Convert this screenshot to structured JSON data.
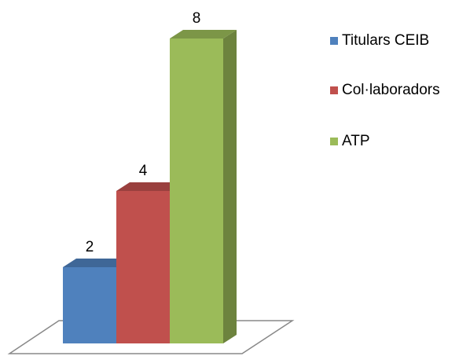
{
  "chart_data": {
    "type": "bar3d",
    "categories": [
      null
    ],
    "series": [
      {
        "name": "Titulars CEIB",
        "color": "#4f81bd",
        "values": [
          2
        ]
      },
      {
        "name": "Col·laboradors",
        "color": "#c0504d",
        "values": [
          4
        ]
      },
      {
        "name": "ATP",
        "color": "#9bbb59",
        "values": [
          8
        ]
      }
    ],
    "legend": "right"
  }
}
